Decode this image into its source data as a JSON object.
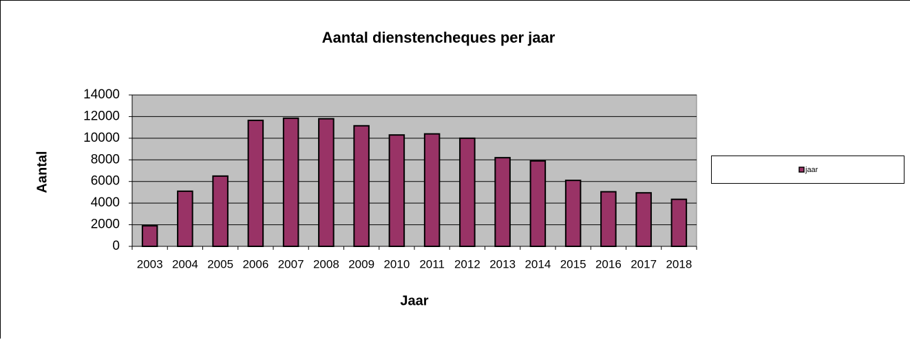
{
  "chart_data": {
    "type": "bar",
    "title": "Aantal dienstencheques per jaar",
    "x_label": "Jaar",
    "y_label": "Aantal",
    "categories": [
      "2003",
      "2004",
      "2005",
      "2006",
      "2007",
      "2008",
      "2009",
      "2010",
      "2011",
      "2012",
      "2013",
      "2014",
      "2015",
      "2016",
      "2017",
      "2018"
    ],
    "series": [
      {
        "name": "jaar",
        "color": "#993366",
        "values": [
          1900,
          5100,
          6500,
          11650,
          11850,
          11800,
          11150,
          10300,
          10400,
          10000,
          8200,
          7900,
          6100,
          5050,
          4950,
          4350
        ]
      }
    ],
    "ylim": [
      0,
      14000
    ],
    "yticks": [
      0,
      2000,
      4000,
      6000,
      8000,
      10000,
      12000,
      14000
    ],
    "grid": true,
    "plot_background": "#c0c0c0",
    "legend": "right"
  }
}
